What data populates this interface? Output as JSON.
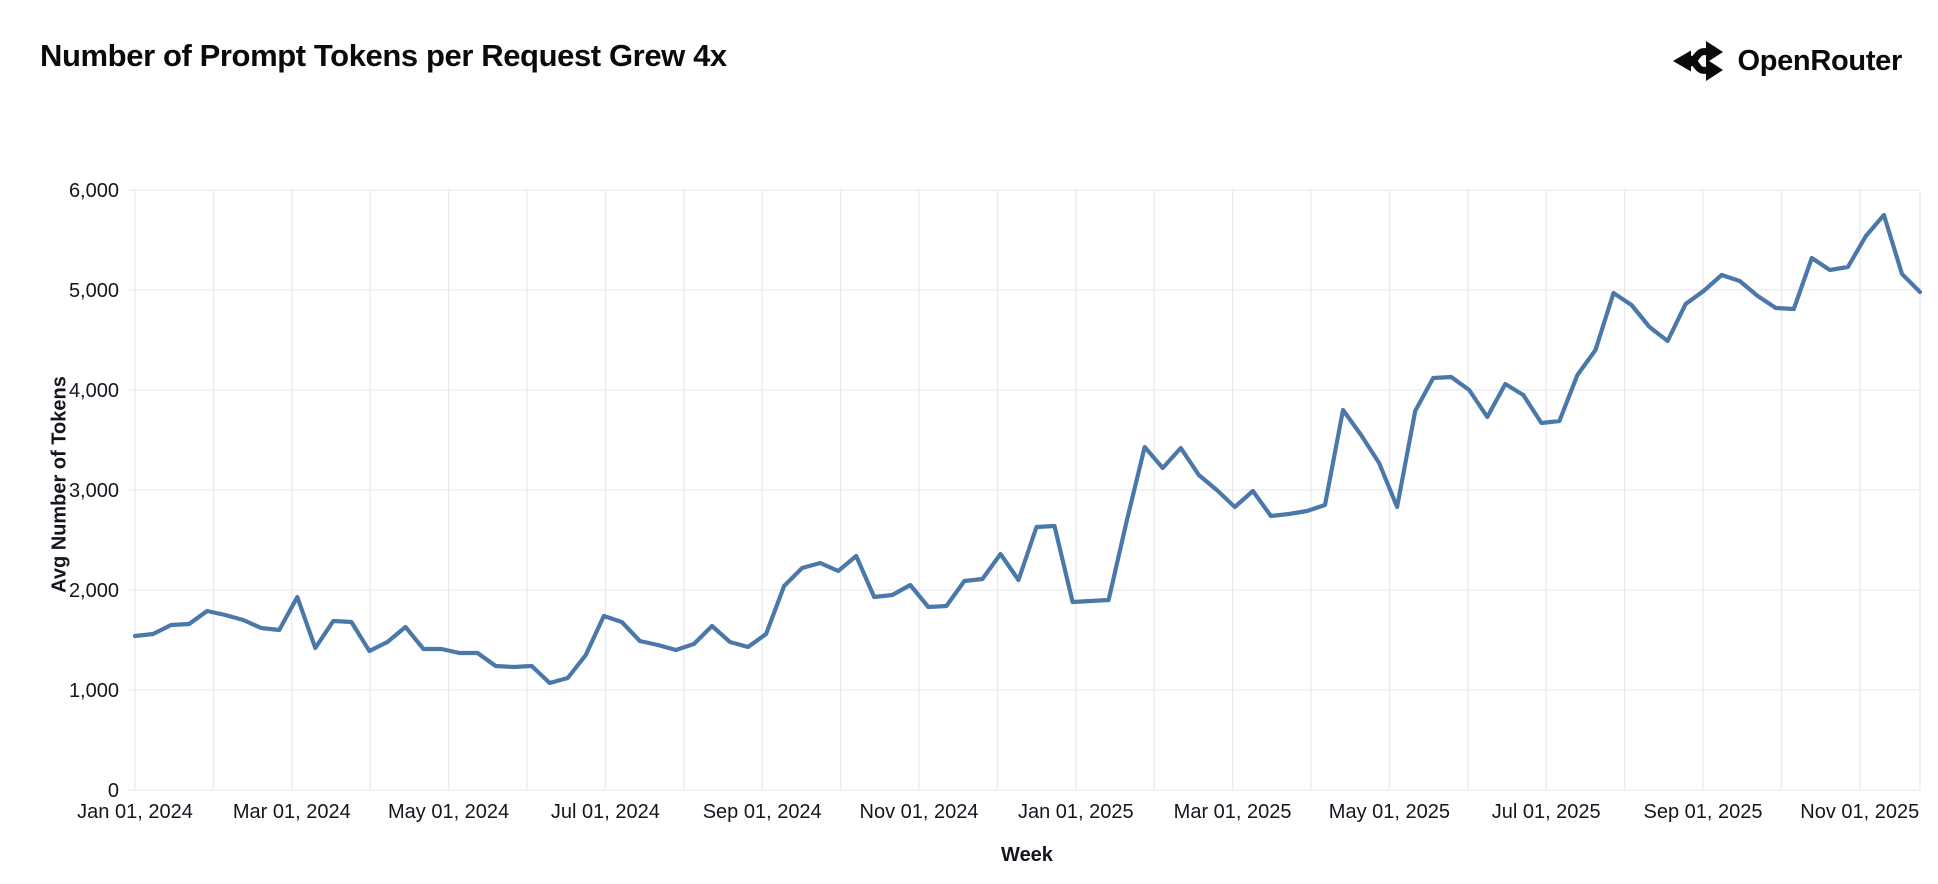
{
  "header": {
    "title": "Number of Prompt Tokens per Request Grew 4x",
    "brand_name": "OpenRouter"
  },
  "chart_data": {
    "type": "line",
    "title": "Number of Prompt Tokens per Request Grew 4x",
    "xlabel": "Week",
    "ylabel": "Avg Number of Tokens",
    "x_unit": "weekly data points",
    "x_range_labels": [
      "Jan 01, 2024",
      "Nov 01, 2025"
    ],
    "x_tick_labels": [
      "Jan 01, 2024",
      "Mar 01, 2024",
      "May 01, 2024",
      "Jul 01, 2024",
      "Sep 01, 2024",
      "Nov 01, 2024",
      "Jan 01, 2025",
      "Mar 01, 2025",
      "May 01, 2025",
      "Jul 01, 2025",
      "Sep 01, 2025",
      "Nov 01, 2025"
    ],
    "y_tick_labels": [
      "0",
      "1,000",
      "2,000",
      "3,000",
      "4,000",
      "5,000",
      "6,000"
    ],
    "ylim": [
      0,
      6000
    ],
    "grid": true,
    "legend": "none",
    "line_color": "#4a78a9",
    "grid_color": "#e9e9f0",
    "values": [
      1540,
      1560,
      1650,
      1660,
      1790,
      1750,
      1700,
      1620,
      1600,
      1930,
      1420,
      1690,
      1680,
      1390,
      1480,
      1630,
      1410,
      1410,
      1370,
      1370,
      1240,
      1230,
      1240,
      1070,
      1120,
      1350,
      1740,
      1680,
      1490,
      1450,
      1400,
      1460,
      1640,
      1480,
      1430,
      1560,
      2040,
      2220,
      2270,
      2190,
      2340,
      1930,
      1950,
      2050,
      1830,
      1840,
      2090,
      2110,
      2360,
      2100,
      2630,
      2640,
      1880,
      1890,
      1900,
      2690,
      3430,
      3220,
      3420,
      3150,
      3000,
      2830,
      2990,
      2740,
      2760,
      2790,
      2850,
      3800,
      3550,
      3270,
      2830,
      3790,
      4120,
      4130,
      4000,
      3730,
      4060,
      3950,
      3670,
      3690,
      4150,
      4400,
      4970,
      4850,
      4630,
      4490,
      4860,
      4990,
      5150,
      5090,
      4940,
      4820,
      4810,
      5320,
      5200,
      5230,
      5540,
      5750,
      5160,
      4980
    ]
  }
}
